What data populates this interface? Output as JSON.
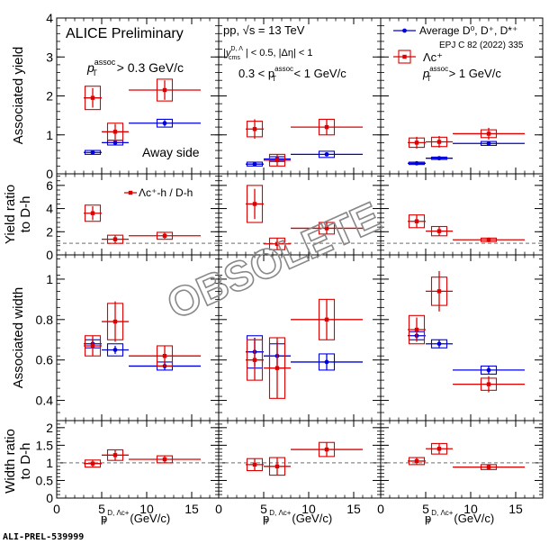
{
  "figure": {
    "preliminary_label": "ALICE Preliminary",
    "system": "pp, √s = 13 TeV",
    "rapidity_cut": "|y_cms^{D,Λc+}| < 0.5, |Δη| < 1",
    "rapidity_cut_parts": {
      "main": "|y",
      "sub": "cms",
      "sup": "D, Λ",
      "rest": "| < 0.5, |Δη| < 1"
    },
    "assoc_low_mid": "0.3 < p",
    "assoc_low_sub": "T",
    "assoc_low_sup": "assoc",
    "assoc_low_rest": " < 1 GeV/c",
    "assoc_left_main": "p",
    "assoc_left_sub": "T",
    "assoc_left_sup": "assoc",
    "assoc_left_rest": " > 0.3 GeV/c",
    "assoc_right_main": "p",
    "assoc_right_sub": "T",
    "assoc_right_sup": "assoc",
    "assoc_right_rest": " > 1 GeV/c",
    "away_side": "Away side",
    "legend_d": "Average D⁰, D⁺, D*⁺",
    "legend_d_ref": "EPJ C 82 (2022) 335",
    "legend_lc": "Λc⁺",
    "ratio_legend": "Λc⁺-h / D-h",
    "watermark": "OBSOLETE",
    "footer_id": "ALI-PREL-539999",
    "colors": {
      "d": "#0000dd",
      "lc": "#dd0000",
      "dashed": "#888888"
    }
  },
  "chart_data": {
    "type": "scatter",
    "layout": "4 rows x 3 columns, shared x axis",
    "columns": [
      "pT_assoc > 0.3 GeV/c",
      "0.3 < pT_assoc < 1 GeV/c",
      "pT_assoc > 1 GeV/c"
    ],
    "xlabel": "p_T^{D, Λc+} (GeV/c)",
    "xlim": [
      0,
      18
    ],
    "xticks": [
      0,
      5,
      10,
      15
    ],
    "rows": [
      {
        "key": "yield",
        "ylabel": "Associated yield",
        "ylim": [
          0,
          4
        ],
        "yticks": [
          0,
          1,
          2,
          3,
          4
        ]
      },
      {
        "key": "yield_ratio",
        "ylabel": "Yield ratio to D-h",
        "ylim": [
          0,
          7
        ],
        "yticks": [
          0,
          2,
          4,
          6
        ],
        "reference_line": 1
      },
      {
        "key": "width",
        "ylabel": "Associated width",
        "ylim": [
          0.3,
          1.12
        ],
        "yticks": [
          0.4,
          0.6,
          0.8,
          1
        ]
      },
      {
        "key": "width_ratio",
        "ylabel": "Width ratio to D-h",
        "ylim": [
          0,
          2.2
        ],
        "yticks": [
          0,
          0.5,
          1,
          1.5,
          2
        ],
        "reference_line": 1
      }
    ],
    "series": [
      {
        "name": "Average D0, D+, D*+",
        "color": "#0000dd",
        "marker": "circle",
        "x": [
          4,
          6.5,
          12
        ],
        "xerr": [
          1,
          1.5,
          4
        ],
        "yield": [
          {
            "y": [
              0.55,
              0.8,
              1.3
            ],
            "err": [
              0.04,
              0.05,
              0.08
            ],
            "sys": [
              0.05,
              0.06,
              0.1
            ]
          },
          {
            "y": [
              0.25,
              0.38,
              0.5
            ],
            "err": [
              0.03,
              0.03,
              0.05
            ],
            "sys": [
              0.05,
              0.06,
              0.08
            ]
          },
          {
            "y": [
              0.27,
              0.4,
              0.78
            ],
            "err": [
              0.02,
              0.02,
              0.04
            ],
            "sys": [
              0.03,
              0.03,
              0.05
            ]
          }
        ],
        "width": [
          {
            "y": [
              0.68,
              0.65,
              0.57
            ],
            "err": [
              0.02,
              0.02,
              0.02
            ],
            "sys": [
              0.02,
              0.03,
              0.02
            ]
          },
          {
            "y": [
              0.64,
              0.62,
              0.59
            ],
            "err": [
              0.07,
              0.07,
              0.04
            ],
            "sys": [
              0.08,
              0.06,
              0.04
            ]
          },
          {
            "y": [
              0.72,
              0.68,
              0.55
            ],
            "err": [
              0.02,
              0.02,
              0.02
            ],
            "sys": [
              0.02,
              0.02,
              0.02
            ]
          }
        ]
      },
      {
        "name": "Lambda_c+",
        "color": "#dd0000",
        "marker": "square",
        "x": [
          4,
          6.5,
          12
        ],
        "xerr": [
          1,
          1.5,
          4
        ],
        "yield": [
          {
            "y": [
              1.95,
              1.08,
              2.15
            ],
            "err": [
              0.25,
              0.2,
              0.25
            ],
            "sys": [
              0.3,
              0.22,
              0.28
            ]
          },
          {
            "y": [
              1.15,
              0.35,
              1.2
            ],
            "err": [
              0.25,
              0.15,
              0.2
            ],
            "sys": [
              0.2,
              0.15,
              0.2
            ]
          },
          {
            "y": [
              0.8,
              0.82,
              1.03
            ],
            "err": [
              0.15,
              0.15,
              0.15
            ],
            "sys": [
              0.12,
              0.12,
              0.1
            ]
          }
        ],
        "yield_ratio": [
          {
            "y": [
              3.6,
              1.35,
              1.65
            ],
            "err": [
              0.6,
              0.35,
              0.25
            ],
            "sys": [
              0.7,
              0.35,
              0.3
            ]
          },
          {
            "y": [
              4.4,
              0.95,
              2.3
            ],
            "err": [
              1.3,
              0.5,
              0.5
            ],
            "sys": [
              1.6,
              0.5,
              0.5
            ]
          },
          {
            "y": [
              2.9,
              2.05,
              1.3
            ],
            "err": [
              0.55,
              0.4,
              0.2
            ],
            "sys": [
              0.55,
              0.4,
              0.15
            ]
          }
        ],
        "width": [
          {
            "y": [
              0.67,
              0.79,
              0.62
            ],
            "err": [
              0.05,
              0.1,
              0.05
            ],
            "sys": [
              0.05,
              0.09,
              0.05
            ]
          },
          {
            "y": [
              0.6,
              0.56,
              0.8
            ],
            "err": [
              0.1,
              0.15,
              0.1
            ],
            "sys": [
              0.1,
              0.15,
              0.1
            ]
          },
          {
            "y": [
              0.75,
              0.94,
              0.48
            ],
            "err": [
              0.06,
              0.1,
              0.04
            ],
            "sys": [
              0.07,
              0.07,
              0.03
            ]
          }
        ],
        "width_ratio": [
          {
            "y": [
              0.98,
              1.22,
              1.1
            ],
            "err": [
              0.1,
              0.15,
              0.1
            ],
            "sys": [
              0.1,
              0.15,
              0.1
            ]
          },
          {
            "y": [
              0.95,
              0.9,
              1.38
            ],
            "err": [
              0.17,
              0.25,
              0.2
            ],
            "sys": [
              0.17,
              0.25,
              0.2
            ]
          },
          {
            "y": [
              1.05,
              1.4,
              0.88
            ],
            "err": [
              0.1,
              0.15,
              0.07
            ],
            "sys": [
              0.1,
              0.15,
              0.07
            ]
          }
        ]
      }
    ]
  }
}
